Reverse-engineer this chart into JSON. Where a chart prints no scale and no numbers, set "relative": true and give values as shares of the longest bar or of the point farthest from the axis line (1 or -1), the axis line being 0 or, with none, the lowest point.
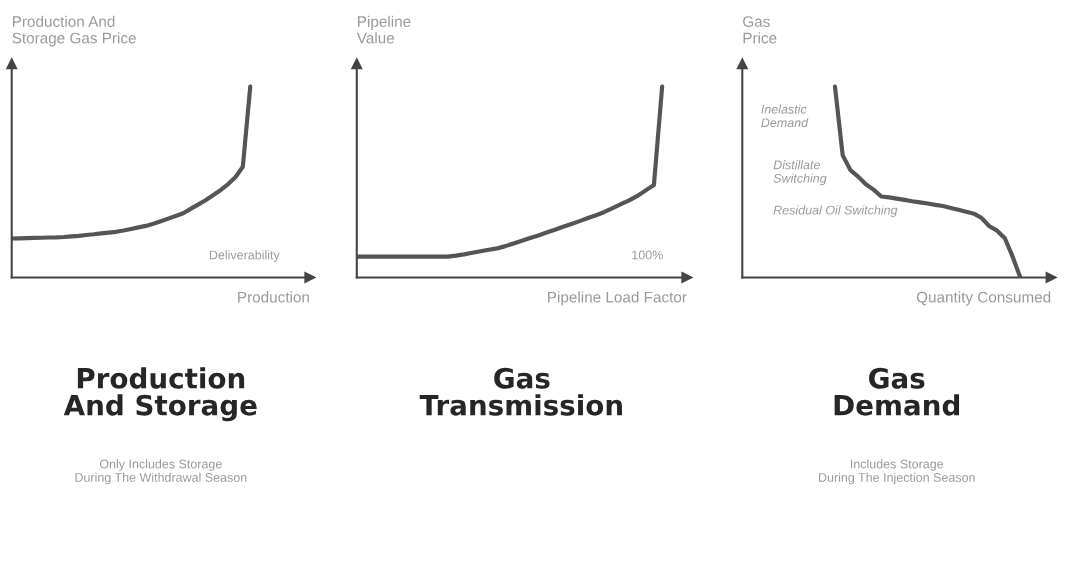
{
  "chart_data": [
    {
      "type": "line",
      "title": "Production\nAnd Storage",
      "subtitle": "Only Includes Storage\nDuring The Withdrawal Season",
      "xlabel": "Production",
      "ylabel": "Production And\nStorage Gas Price",
      "relative": true,
      "tick_labels": false,
      "categories": [
        null,
        null,
        null,
        null,
        null,
        null,
        null,
        null,
        null,
        null,
        null,
        null,
        null,
        null,
        null,
        null,
        null,
        null,
        null,
        null,
        null,
        null,
        null,
        null,
        null,
        null,
        null,
        null,
        null,
        null,
        null,
        null,
        null,
        null,
        null,
        null,
        null,
        null,
        null,
        null,
        null
      ],
      "series": [
        {
          "color": "#555555",
          "values": [
            0.204,
            0.205,
            0.206,
            0.207,
            0.208,
            0.209,
            0.21,
            0.212,
            0.215,
            0.218,
            0.222,
            0.226,
            0.231,
            0.235,
            0.239,
            0.246,
            0.254,
            0.262,
            0.27,
            0.281,
            0.294,
            0.308,
            0.322,
            0.336,
            0.359,
            0.381,
            0.404,
            0.43,
            0.457,
            0.488,
            0.525,
            0.58,
            1,
            null,
            null,
            null,
            null,
            null,
            null,
            null,
            null
          ]
        }
      ],
      "annotations": [
        "Deliverability"
      ]
    },
    {
      "type": "line",
      "title": "Gas\nTransmission",
      "xlabel": "Pipeline Load Factor",
      "ylabel": "Pipeline\nValue",
      "relative": true,
      "tick_labels": false,
      "categories": [
        null,
        null,
        null,
        null,
        null,
        null,
        null,
        null,
        null,
        null,
        null,
        null,
        null,
        null,
        null,
        null,
        null,
        null,
        null,
        null,
        null,
        null,
        null,
        null,
        null,
        null,
        null,
        null,
        null,
        null,
        null,
        null,
        null,
        null,
        null,
        null,
        null,
        null,
        null,
        null,
        null
      ],
      "series": [
        {
          "color": "#555555",
          "values": [
            0.109,
            0.109,
            0.109,
            0.109,
            0.109,
            0.109,
            0.109,
            0.109,
            0.109,
            0.109,
            0.109,
            0.109,
            0.114,
            0.121,
            0.129,
            0.137,
            0.145,
            0.152,
            0.164,
            0.178,
            0.192,
            0.206,
            0.22,
            0.235,
            0.25,
            0.265,
            0.28,
            0.295,
            0.311,
            0.326,
            0.343,
            0.363,
            0.384,
            0.404,
            0.427,
            0.456,
            0.484,
            1,
            null,
            null,
            null
          ]
        }
      ],
      "annotations": [
        "100%"
      ]
    },
    {
      "type": "line",
      "title": "Gas\nDemand",
      "subtitle": "Includes Storage\nDuring The Injection Season",
      "xlabel": "Quantity Consumed",
      "ylabel": "Gas\nPrice",
      "relative": true,
      "tick_labels": false,
      "categories": [
        null,
        null,
        null,
        null,
        null,
        null,
        null,
        null,
        null,
        null,
        null,
        null,
        null,
        null,
        null,
        null,
        null,
        null,
        null,
        null,
        null,
        null,
        null,
        null,
        null,
        null,
        null,
        null,
        null,
        null,
        null,
        null,
        null,
        null,
        null,
        null,
        null,
        null,
        null,
        null,
        null
      ],
      "series": [
        {
          "color": "#555555",
          "values": [
            null,
            null,
            null,
            null,
            null,
            null,
            null,
            null,
            null,
            null,
            null,
            null,
            1,
            0.64,
            0.562,
            0.528,
            0.488,
            0.46,
            0.424,
            0.419,
            0.413,
            0.406,
            0.399,
            0.393,
            0.387,
            0.38,
            0.374,
            0.364,
            0.354,
            0.344,
            0.334,
            0.311,
            0.268,
            0.245,
            0.205,
            0.11,
            0,
            null,
            null,
            null,
            null
          ]
        }
      ],
      "annotations": [
        "Inelastic\nDemand",
        "Distillate\nSwitching",
        "Residual Oil Switching"
      ]
    }
  ]
}
